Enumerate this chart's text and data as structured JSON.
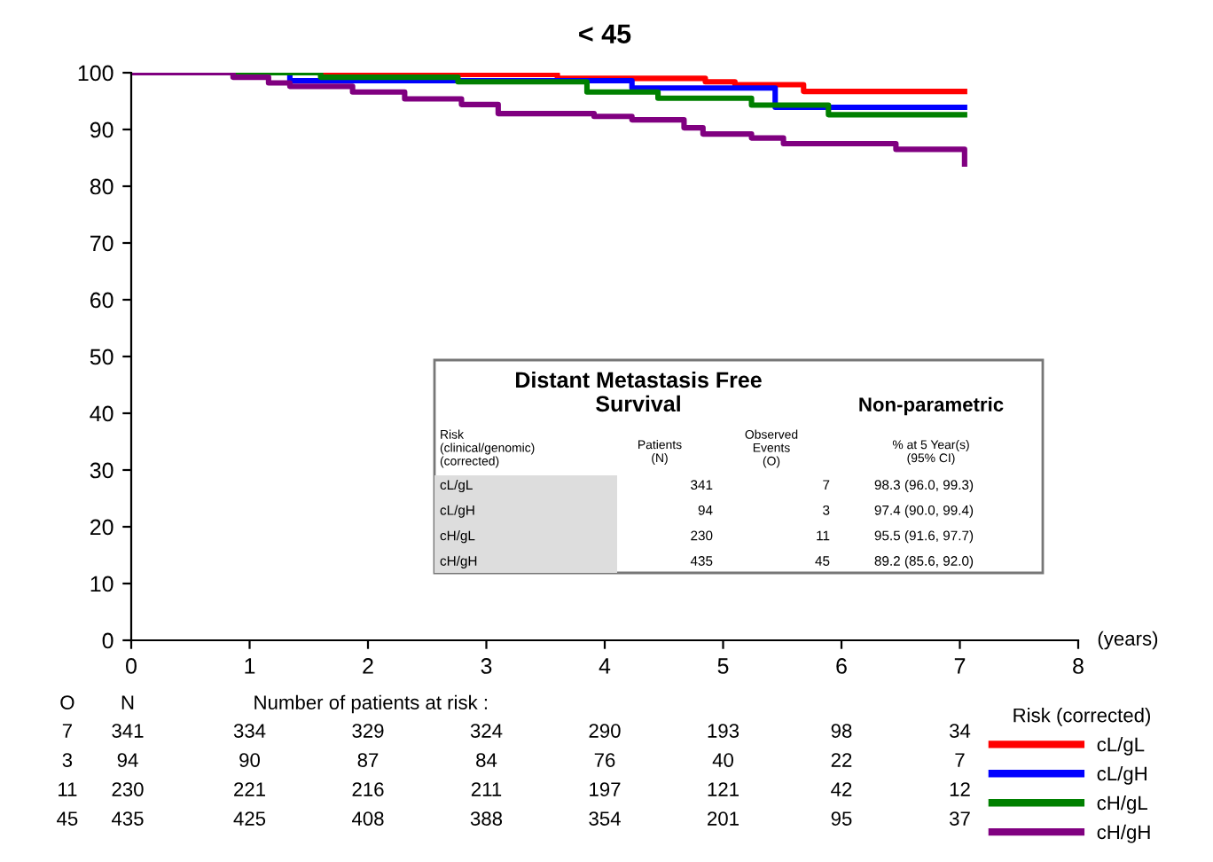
{
  "chart_data": {
    "type": "step",
    "title": "< 45",
    "xlabel": "(years)",
    "legend_title": "Risk (corrected)",
    "legend": "bottom right",
    "xlim": [
      0,
      8
    ],
    "xticks": [
      0,
      1,
      2,
      3,
      4,
      5,
      6,
      7,
      8
    ],
    "ylim": [
      0,
      100
    ],
    "yticks": [
      0,
      10,
      20,
      30,
      40,
      50,
      60,
      70,
      80,
      90,
      100
    ],
    "grid": false,
    "series": [
      {
        "name": "cL/gL",
        "color": "#ff0000",
        "x": [
          0,
          1.6,
          3.6,
          4.85,
          5.1,
          5.68,
          7.04
        ],
        "values": [
          100,
          99.7,
          99.0,
          98.4,
          97.9,
          96.7,
          96.7
        ]
      },
      {
        "name": "cL/gH",
        "color": "#0000ff",
        "x": [
          0,
          1.34,
          4.23,
          5.44,
          7.04
        ],
        "values": [
          100,
          98.6,
          97.3,
          93.9,
          93.9
        ]
      },
      {
        "name": "cH/gL",
        "color": "#008000",
        "x": [
          0,
          1.6,
          2.76,
          3.85,
          4.45,
          5.24,
          5.89,
          7.04
        ],
        "values": [
          100,
          99.2,
          98.4,
          96.6,
          95.5,
          94.3,
          92.6,
          92.6
        ]
      },
      {
        "name": "cH/gH",
        "color": "#800080",
        "x": [
          0,
          0.86,
          1.16,
          1.34,
          1.87,
          2.31,
          2.79,
          3.1,
          3.91,
          4.23,
          4.67,
          4.83,
          5.24,
          5.51,
          6.46,
          7.04,
          7.04
        ],
        "values": [
          100,
          99.2,
          98.2,
          97.6,
          96.6,
          95.4,
          94.4,
          92.8,
          92.3,
          91.7,
          90.3,
          89.2,
          88.5,
          87.5,
          86.5,
          86.5,
          83.9
        ]
      }
    ],
    "annotations": [
      "Distant Metastasis Free\nSurvival",
      "Non-parametric",
      "Risk\n(clinical/genomic)\n(corrected)",
      "Patients\n(N)",
      "Observed\nEvents\n(O)",
      "% at 5 Year(s)\n(95% CI)",
      "cL/gL",
      "341",
      "7",
      "98.3 (96.0, 99.3)",
      "cL/gH",
      "94",
      "3",
      "97.4 (90.0, 99.4)",
      "cH/gL",
      "230",
      "11",
      "95.5 (91.6, 97.7)",
      "cH/gH",
      "435",
      "45",
      "89.2 (85.6, 92.0)",
      "O",
      "N",
      "Number of patients at risk :",
      "7",
      "341",
      "334",
      "329",
      "324",
      "290",
      "193",
      "98",
      "34",
      "3",
      "94",
      "90",
      "87",
      "84",
      "76",
      "40",
      "22",
      "7",
      "11",
      "230",
      "221",
      "216",
      "211",
      "197",
      "121",
      "42",
      "12",
      "45",
      "435",
      "425",
      "408",
      "388",
      "354",
      "201",
      "95",
      "37"
    ]
  }
}
